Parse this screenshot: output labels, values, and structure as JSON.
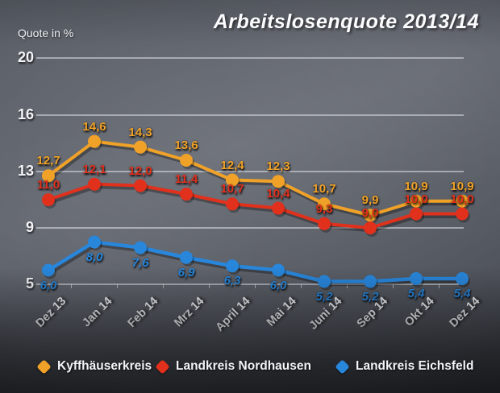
{
  "chart_data": {
    "type": "line",
    "title": "Arbeitslosenquote 2013/14",
    "ylabel": "Quote in %",
    "xlabel": "",
    "categories": [
      "Dez 13",
      "Jan 14",
      "Feb 14",
      "Mrz 14",
      "April 14",
      "Mai 14",
      "Juni 14",
      "Sep 14",
      "Okt 14",
      "Dez 14"
    ],
    "series": [
      {
        "name": "Kyffhäuserkreis",
        "color": "#F0A228",
        "values": [
          12.7,
          14.6,
          14.3,
          13.6,
          12.4,
          12.3,
          10.7,
          9.9,
          10.9,
          10.9
        ],
        "label_position": "above",
        "italic_value_labels": false
      },
      {
        "name": "Landkreis Nordhausen",
        "color": "#E1301C",
        "values": [
          11.0,
          12.1,
          12.0,
          11.4,
          10.7,
          10.4,
          9.3,
          9.0,
          10.0,
          10.0
        ],
        "label_position": "above",
        "italic_value_labels": false
      },
      {
        "name": "Landkreis Eichsfeld",
        "color": "#2886DB",
        "values": [
          6.0,
          8.0,
          7.6,
          6.9,
          6.3,
          6.0,
          5.2,
          5.2,
          5.4,
          5.4
        ],
        "label_position": "below",
        "italic_value_labels": true
      }
    ],
    "y_ticks": [
      20,
      16,
      13,
      9,
      5
    ],
    "ylim": [
      5,
      20
    ],
    "grid": true,
    "legend_position": "bottom",
    "decimal_separator": ","
  }
}
